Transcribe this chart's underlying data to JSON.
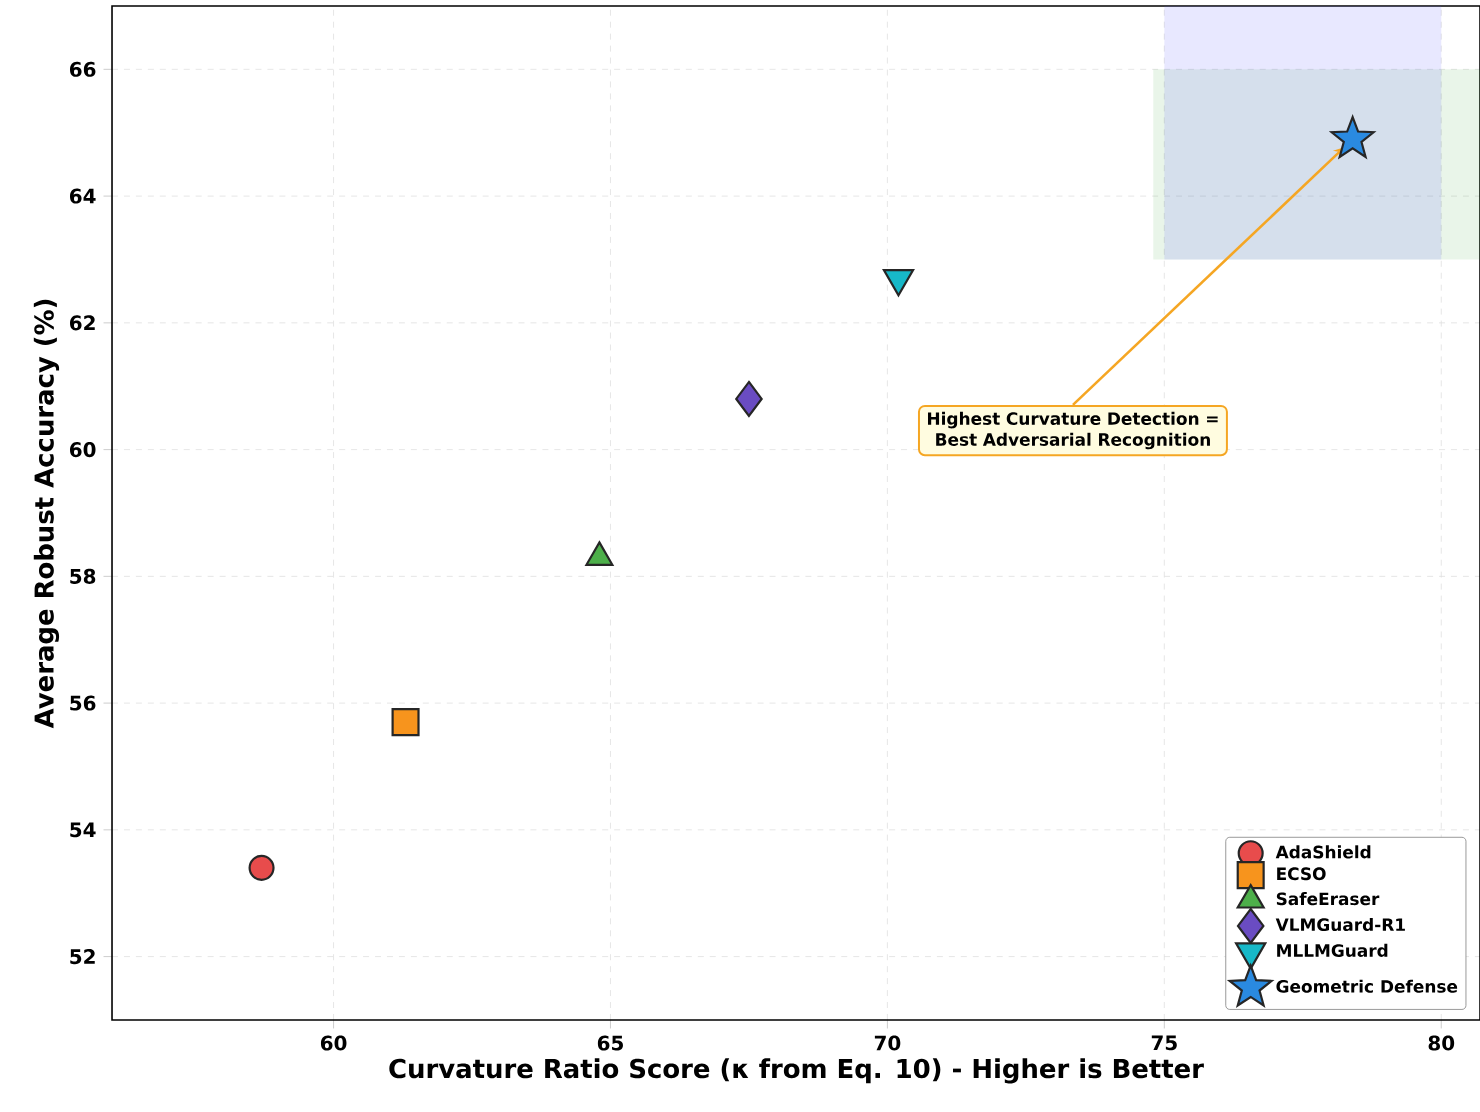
{
  "chart_data": {
    "type": "scatter",
    "xlabel": "Curvature Ratio Score (κ from Eq. 10) - Higher is Better",
    "ylabel": "Average Robust Accuracy (%)",
    "xlim": [
      56,
      80.7
    ],
    "ylim": [
      51,
      67
    ],
    "xticks": [
      60,
      65,
      70,
      75,
      80
    ],
    "yticks": [
      52,
      54,
      56,
      58,
      60,
      62,
      64,
      66
    ],
    "grid": true,
    "legend": "bottom right",
    "series": [
      {
        "type": "line",
        "color": "#2ca02c",
        "x": [
          74.8,
          80.7
        ],
        "values": [
          null,
          null
        ],
        "lower": [
          63,
          63
        ],
        "upper": [
          66,
          66
        ]
      },
      {
        "type": "line",
        "color": "#6666ff",
        "x": [
          75,
          80
        ],
        "values": [
          null,
          null
        ],
        "lower": [
          63,
          63
        ],
        "upper": [
          67,
          67
        ]
      },
      {
        "name": "AdaShield",
        "color": "#e84c4c",
        "marker": "circle",
        "x": [
          58.7
        ],
        "values": [
          53.4
        ]
      },
      {
        "name": "ECSO",
        "color": "#f7941d",
        "marker": "square",
        "x": [
          61.3
        ],
        "values": [
          55.7
        ]
      },
      {
        "name": "SafeEraser",
        "color": "#4daf4a",
        "marker": "triangle",
        "x": [
          64.8
        ],
        "values": [
          58.3
        ]
      },
      {
        "name": "VLMGuard-R1",
        "color": "#6a4cc2",
        "marker": "diamond",
        "x": [
          67.5
        ],
        "values": [
          60.8
        ]
      },
      {
        "name": "MLLMGuard",
        "color": "#17b8c8",
        "marker": "triangle_down",
        "x": [
          70.2
        ],
        "values": [
          62.7
        ]
      },
      {
        "name": "Geometric Defense",
        "color": "#2a8ae0",
        "marker": "star",
        "x": [
          78.4
        ],
        "values": [
          64.9
        ]
      }
    ],
    "annotations": [
      {
        "text": "Highest Curvature Detection = Best Adversarial Recognition",
        "x": 78.25,
        "y": 64.77
      }
    ]
  }
}
